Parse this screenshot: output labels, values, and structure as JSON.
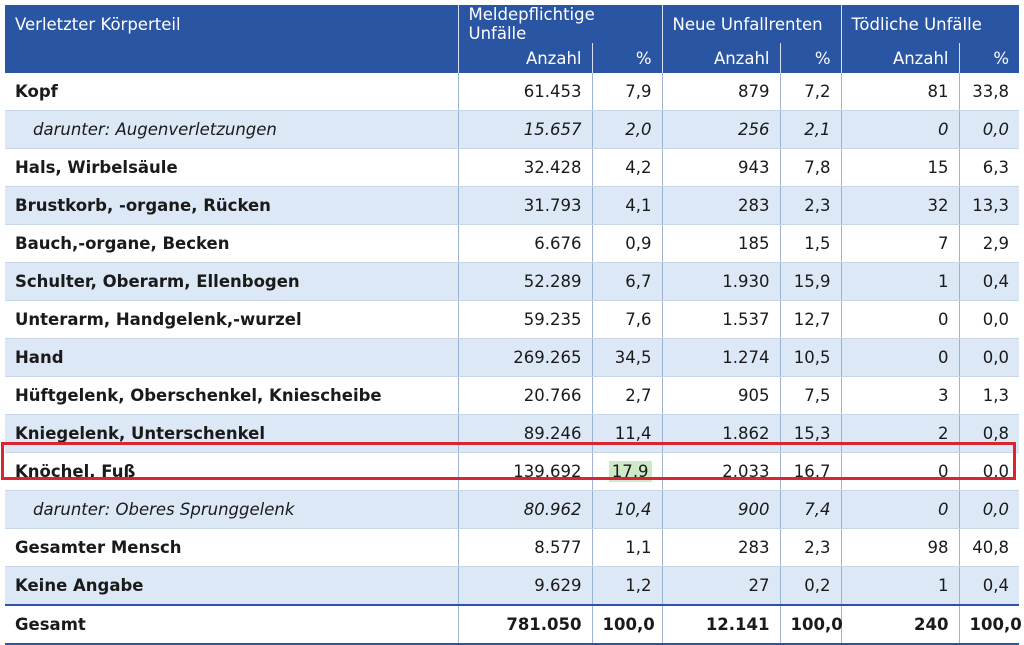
{
  "header": {
    "col_label": "Verletzter Körperteil",
    "groups": [
      "Meldepflichtige Unfälle",
      "Neue Unfallrenten",
      "Tödliche Unfälle"
    ],
    "sub_anzahl": "Anzahl",
    "sub_pct": "%"
  },
  "rows": [
    {
      "label": "Kopf",
      "v": [
        "61.453",
        "7,9",
        "879",
        "7,2",
        "81",
        "33,8"
      ]
    },
    {
      "label": "darunter: Augenverletzungen",
      "v": [
        "15.657",
        "2,0",
        "256",
        "2,1",
        "0",
        "0,0"
      ]
    },
    {
      "label": "Hals, Wirbelsäule",
      "v": [
        "32.428",
        "4,2",
        "943",
        "7,8",
        "15",
        "6,3"
      ]
    },
    {
      "label": "Brustkorb, -organe, Rücken",
      "v": [
        "31.793",
        "4,1",
        "283",
        "2,3",
        "32",
        "13,3"
      ]
    },
    {
      "label": "Bauch,-organe, Becken",
      "v": [
        "6.676",
        "0,9",
        "185",
        "1,5",
        "7",
        "2,9"
      ]
    },
    {
      "label": "Schulter, Oberarm, Ellenbogen",
      "v": [
        "52.289",
        "6,7",
        "1.930",
        "15,9",
        "1",
        "0,4"
      ]
    },
    {
      "label": "Unterarm, Handgelenk,-wurzel",
      "v": [
        "59.235",
        "7,6",
        "1.537",
        "12,7",
        "0",
        "0,0"
      ]
    },
    {
      "label": "Hand",
      "v": [
        "269.265",
        "34,5",
        "1.274",
        "10,5",
        "0",
        "0,0"
      ]
    },
    {
      "label": "Hüftgelenk, Oberschenkel, Kniescheibe",
      "v": [
        "20.766",
        "2,7",
        "905",
        "7,5",
        "3",
        "1,3"
      ]
    },
    {
      "label": "Kniegelenk, Unterschenkel",
      "v": [
        "89.246",
        "11,4",
        "1.862",
        "15,3",
        "2",
        "0,8"
      ]
    },
    {
      "label": "Knöchel, Fuß",
      "v": [
        "139.692",
        "17,9",
        "2.033",
        "16,7",
        "0",
        "0,0"
      ]
    },
    {
      "label": "darunter: Oberes Sprunggelenk",
      "v": [
        "80.962",
        "10,4",
        "900",
        "7,4",
        "0",
        "0,0"
      ]
    },
    {
      "label": "Gesamter Mensch",
      "v": [
        "8.577",
        "1,1",
        "283",
        "2,3",
        "98",
        "40,8"
      ]
    },
    {
      "label": "Keine Angabe",
      "v": [
        "9.629",
        "1,2",
        "27",
        "0,2",
        "1",
        "0,4"
      ]
    },
    {
      "label": "Gesamt",
      "v": [
        "781.050",
        "100,0",
        "12.141",
        "100,0",
        "240",
        "100,0"
      ]
    }
  ],
  "colors": {
    "header_bg": "#2a55a2",
    "alt_row": "#dde8f6",
    "highlight_box": "#d7262f",
    "highlight_cell": "#cfe8c6"
  }
}
